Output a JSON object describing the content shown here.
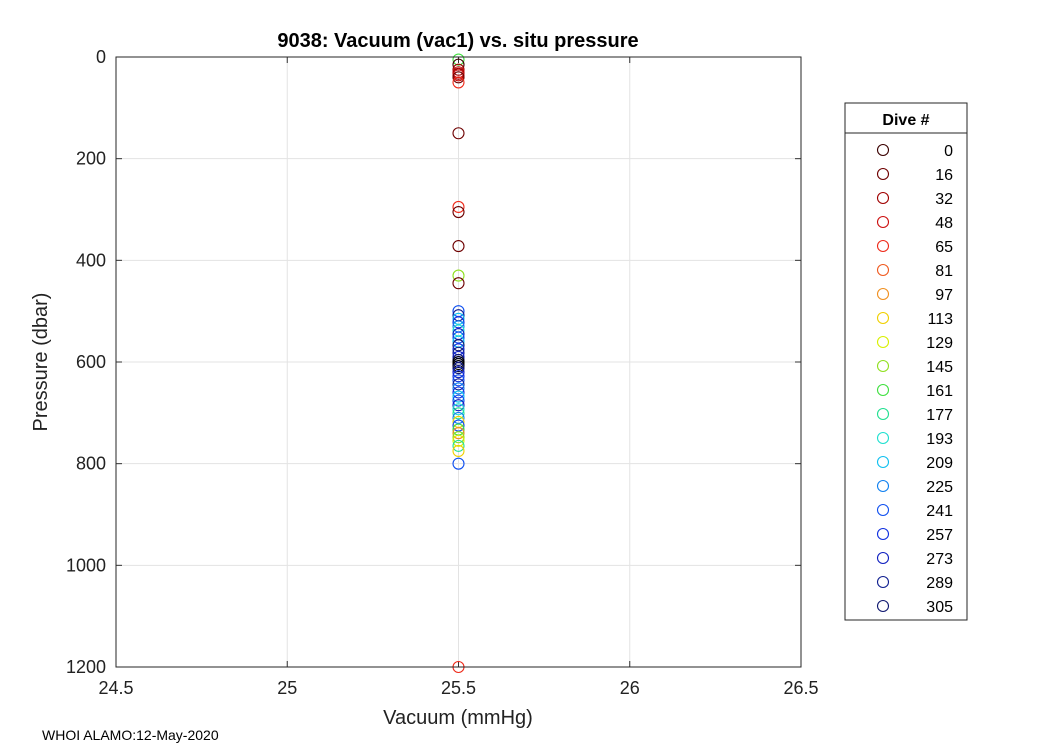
{
  "chart_data": {
    "type": "scatter",
    "title": "9038: Vacuum (vac1) vs. situ pressure",
    "xlabel": "Vacuum (mmHg)",
    "ylabel": "Pressure (dbar)",
    "xlim": [
      24.5,
      26.5
    ],
    "ylim": [
      0,
      1200
    ],
    "y_reversed": true,
    "xticks": [
      "24.5",
      "25",
      "25.5",
      "26",
      "26.5"
    ],
    "yticks": [
      "0",
      "200",
      "400",
      "600",
      "800",
      "1000",
      "1200"
    ],
    "grid": true,
    "marker": "open-circle",
    "legend": {
      "title": "Dive #",
      "placement": "outside-right",
      "entries": [
        {
          "label": "0",
          "color": "#3a0000"
        },
        {
          "label": "16",
          "color": "#6e0000"
        },
        {
          "label": "32",
          "color": "#a00000"
        },
        {
          "label": "48",
          "color": "#cc1010"
        },
        {
          "label": "65",
          "color": "#ee2a1a"
        },
        {
          "label": "81",
          "color": "#f05a20"
        },
        {
          "label": "97",
          "color": "#f09020"
        },
        {
          "label": "113",
          "color": "#f0d000"
        },
        {
          "label": "129",
          "color": "#d8f000"
        },
        {
          "label": "145",
          "color": "#90e020"
        },
        {
          "label": "161",
          "color": "#40e040"
        },
        {
          "label": "177",
          "color": "#20e090"
        },
        {
          "label": "193",
          "color": "#20e0d0"
        },
        {
          "label": "209",
          "color": "#10c0f0"
        },
        {
          "label": "225",
          "color": "#1080f0"
        },
        {
          "label": "241",
          "color": "#1050f0"
        },
        {
          "label": "257",
          "color": "#1030e0"
        },
        {
          "label": "273",
          "color": "#1020c0"
        },
        {
          "label": "289",
          "color": "#102090"
        },
        {
          "label": "305",
          "color": "#101870"
        }
      ]
    },
    "points": [
      {
        "x": 25.5,
        "y": 5,
        "color": "#40e040"
      },
      {
        "x": 25.5,
        "y": 15,
        "color": "#3a0000"
      },
      {
        "x": 25.5,
        "y": 25,
        "color": "#a00000"
      },
      {
        "x": 25.5,
        "y": 30,
        "color": "#cc1010"
      },
      {
        "x": 25.5,
        "y": 33,
        "color": "#a00000"
      },
      {
        "x": 25.5,
        "y": 36,
        "color": "#cc1010"
      },
      {
        "x": 25.5,
        "y": 40,
        "color": "#6e0000"
      },
      {
        "x": 25.5,
        "y": 50,
        "color": "#ee2a1a"
      },
      {
        "x": 25.5,
        "y": 150,
        "color": "#6e0000"
      },
      {
        "x": 25.5,
        "y": 295,
        "color": "#ee2a1a"
      },
      {
        "x": 25.5,
        "y": 305,
        "color": "#6e0000"
      },
      {
        "x": 25.5,
        "y": 372,
        "color": "#6e0000"
      },
      {
        "x": 25.5,
        "y": 430,
        "color": "#90e020"
      },
      {
        "x": 25.5,
        "y": 445,
        "color": "#6e0000"
      },
      {
        "x": 25.5,
        "y": 500,
        "color": "#1050f0"
      },
      {
        "x": 25.5,
        "y": 508,
        "color": "#102090"
      },
      {
        "x": 25.5,
        "y": 515,
        "color": "#10c0f0"
      },
      {
        "x": 25.5,
        "y": 522,
        "color": "#1030e0"
      },
      {
        "x": 25.5,
        "y": 530,
        "color": "#1080f0"
      },
      {
        "x": 25.5,
        "y": 538,
        "color": "#20e0d0"
      },
      {
        "x": 25.5,
        "y": 545,
        "color": "#1020c0"
      },
      {
        "x": 25.5,
        "y": 552,
        "color": "#1050f0"
      },
      {
        "x": 25.5,
        "y": 560,
        "color": "#10c0f0"
      },
      {
        "x": 25.5,
        "y": 567,
        "color": "#101870"
      },
      {
        "x": 25.5,
        "y": 575,
        "color": "#1030e0"
      },
      {
        "x": 25.5,
        "y": 582,
        "color": "#102090"
      },
      {
        "x": 25.5,
        "y": 590,
        "color": "#1020c0"
      },
      {
        "x": 25.5,
        "y": 596,
        "color": "#101870"
      },
      {
        "x": 25.5,
        "y": 600,
        "color": "#000000"
      },
      {
        "x": 25.5,
        "y": 604,
        "color": "#000000"
      },
      {
        "x": 25.5,
        "y": 608,
        "color": "#000000"
      },
      {
        "x": 25.5,
        "y": 612,
        "color": "#101870"
      },
      {
        "x": 25.5,
        "y": 620,
        "color": "#1020c0"
      },
      {
        "x": 25.5,
        "y": 628,
        "color": "#1030e0"
      },
      {
        "x": 25.5,
        "y": 636,
        "color": "#1050f0"
      },
      {
        "x": 25.5,
        "y": 644,
        "color": "#102090"
      },
      {
        "x": 25.5,
        "y": 652,
        "color": "#1080f0"
      },
      {
        "x": 25.5,
        "y": 660,
        "color": "#1030e0"
      },
      {
        "x": 25.5,
        "y": 668,
        "color": "#10c0f0"
      },
      {
        "x": 25.5,
        "y": 676,
        "color": "#1050f0"
      },
      {
        "x": 25.5,
        "y": 685,
        "color": "#1020c0"
      },
      {
        "x": 25.5,
        "y": 693,
        "color": "#20e0d0"
      },
      {
        "x": 25.5,
        "y": 701,
        "color": "#20e090"
      },
      {
        "x": 25.5,
        "y": 710,
        "color": "#1080f0"
      },
      {
        "x": 25.5,
        "y": 718,
        "color": "#f0d000"
      },
      {
        "x": 25.5,
        "y": 725,
        "color": "#1050f0"
      },
      {
        "x": 25.5,
        "y": 733,
        "color": "#40e040"
      },
      {
        "x": 25.5,
        "y": 740,
        "color": "#f09020"
      },
      {
        "x": 25.5,
        "y": 748,
        "color": "#90e020"
      },
      {
        "x": 25.5,
        "y": 755,
        "color": "#d8f000"
      },
      {
        "x": 25.5,
        "y": 765,
        "color": "#20e090"
      },
      {
        "x": 25.5,
        "y": 775,
        "color": "#f0d000"
      },
      {
        "x": 25.5,
        "y": 800,
        "color": "#1050f0"
      },
      {
        "x": 25.5,
        "y": 1200,
        "color": "#ee2a1a"
      }
    ]
  },
  "footer": "WHOI ALAMO:12-May-2020"
}
